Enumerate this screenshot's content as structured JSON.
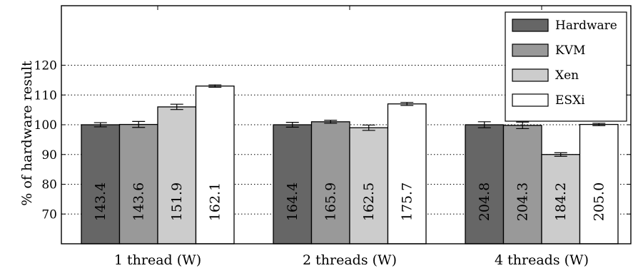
{
  "chart_data": {
    "type": "bar",
    "title": "",
    "xlabel": "",
    "ylabel": "% of hardware result",
    "ylim": [
      60,
      140
    ],
    "yticks": [
      70,
      80,
      90,
      100,
      110,
      120
    ],
    "grid": "horizontal-dotted",
    "legend_position": "top-right",
    "categories": [
      "1 thread (W)",
      "2 threads (W)",
      "4 threads (W)"
    ],
    "series": [
      {
        "name": "Hardware",
        "color": "#666666",
        "values": [
          100,
          100,
          100
        ],
        "errors": [
          0.7,
          0.8,
          1.0
        ],
        "labels": [
          "143.4",
          "164.4",
          "204.8"
        ],
        "label_color": "#000000"
      },
      {
        "name": "KVM",
        "color": "#999999",
        "values": [
          100.1,
          101,
          99.8
        ],
        "errors": [
          1.0,
          0.5,
          1.1
        ],
        "labels": [
          "143.6",
          "165.9",
          "204.3"
        ],
        "label_color": "#000000"
      },
      {
        "name": "Xen",
        "color": "#cccccc",
        "values": [
          106,
          99,
          90
        ],
        "errors": [
          0.9,
          0.9,
          0.6
        ],
        "labels": [
          "151.9",
          "162.5",
          "184.2"
        ],
        "label_color": "#000000"
      },
      {
        "name": "ESXi",
        "color": "#ffffff",
        "values": [
          113,
          107,
          100.1
        ],
        "errors": [
          0.4,
          0.5,
          0.4
        ],
        "labels": [
          "162.1",
          "175.7",
          "205.0"
        ],
        "label_color": "#000000"
      }
    ]
  }
}
